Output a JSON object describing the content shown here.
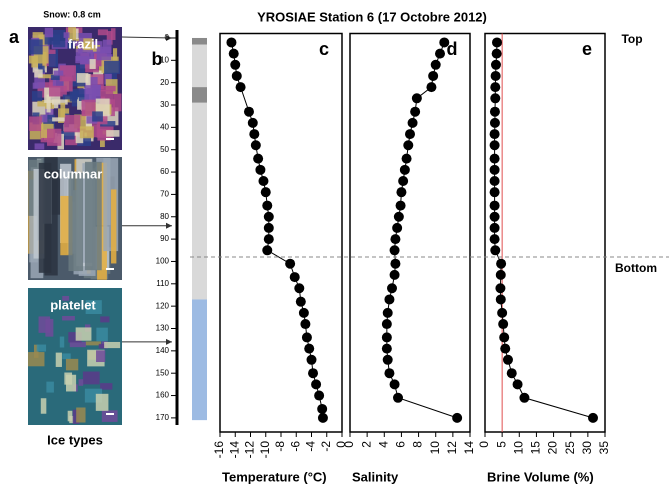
{
  "title": "YROSIAE Station 6 (17 Octobre 2012)",
  "snow": "Snow: 0.8 cm",
  "ice_types": "Ice types",
  "top": "Top",
  "bottom": "Bottom",
  "bottom_depth": 98,
  "panel_a": "a",
  "panel_b": "b",
  "photos": [
    {
      "label": "frazil",
      "depth": 0
    },
    {
      "label": "columnar",
      "depth": 84
    },
    {
      "label": "platelet",
      "depth": 136
    }
  ],
  "ice_column": [
    {
      "from": 0,
      "to": 3,
      "color": "#8a8a8a"
    },
    {
      "from": 3,
      "to": 22,
      "color": "#d9d9d9"
    },
    {
      "from": 22,
      "to": 29,
      "color": "#8a8a8a"
    },
    {
      "from": 29,
      "to": 117,
      "color": "#d9d9d9"
    },
    {
      "from": 117,
      "to": 171,
      "color": "#9dbbe3"
    }
  ],
  "depth_axis": {
    "ylim": [
      -2,
      176
    ],
    "yticks": [
      0,
      10,
      20,
      30,
      40,
      50,
      60,
      70,
      80,
      90,
      100,
      110,
      120,
      130,
      140,
      150,
      160,
      170
    ]
  },
  "chart_data": [
    {
      "type": "line",
      "label": "c",
      "xlabel": "Temperature (°C)",
      "xlim": [
        -16,
        0
      ],
      "xticks": [
        -16,
        -14,
        -12,
        -10,
        -8,
        -6,
        -4,
        -2,
        0
      ],
      "depth": [
        2,
        7,
        12,
        17,
        22,
        33,
        38,
        43,
        48,
        54,
        59,
        64,
        69,
        75,
        80,
        85,
        90,
        95,
        101,
        107,
        112,
        118,
        123,
        128,
        134,
        139,
        144,
        150,
        155,
        160,
        166,
        170
      ],
      "values": [
        -14.5,
        -14.2,
        -14,
        -13.8,
        -13.3,
        -12.2,
        -11.7,
        -11.5,
        -11.3,
        -11,
        -10.7,
        -10.3,
        -10,
        -9.8,
        -9.6,
        -9.6,
        -9.6,
        -9.8,
        -6.8,
        -6.2,
        -5.6,
        -5.4,
        -5,
        -4.8,
        -4.6,
        -4.3,
        -4,
        -3.8,
        -3.4,
        -3,
        -2.6,
        -2.5
      ]
    },
    {
      "type": "line",
      "label": "d",
      "xlabel": "Salinity",
      "xlim": [
        0,
        14
      ],
      "xticks": [
        0,
        2,
        4,
        6,
        8,
        10,
        12,
        14
      ],
      "depth": [
        2,
        7,
        12,
        17,
        22,
        27,
        33,
        38,
        43,
        48,
        54,
        59,
        64,
        69,
        75,
        80,
        85,
        90,
        95,
        101,
        106,
        112,
        117,
        123,
        128,
        134,
        139,
        144,
        150,
        155,
        161,
        170
      ],
      "values": [
        11,
        10.5,
        10,
        9.7,
        9.5,
        7.8,
        7.6,
        7.3,
        7,
        6.8,
        6.6,
        6.4,
        6.2,
        6,
        5.9,
        5.7,
        5.5,
        5.3,
        5.2,
        5.3,
        5.2,
        4.9,
        4.6,
        4.4,
        4.3,
        4.3,
        4.3,
        4.4,
        4.6,
        5.2,
        5.6,
        12.5
      ]
    },
    {
      "type": "line",
      "label": "e",
      "xlabel": "Brine Volume (%)",
      "xlim": [
        0,
        35
      ],
      "xticks": [
        0,
        5,
        10,
        15,
        20,
        25,
        30,
        35
      ],
      "reference_line": 5,
      "depth": [
        2,
        7,
        12,
        17,
        22,
        27,
        33,
        38,
        43,
        48,
        54,
        59,
        64,
        69,
        75,
        80,
        85,
        90,
        95,
        101,
        106,
        112,
        117,
        123,
        128,
        134,
        139,
        144,
        150,
        155,
        161,
        170
      ],
      "values": [
        3.5,
        3.4,
        3.2,
        3.1,
        3,
        3,
        2.9,
        2.9,
        2.8,
        2.8,
        2.8,
        2.8,
        2.8,
        2.8,
        2.8,
        2.8,
        2.8,
        2.8,
        3,
        4.7,
        4.6,
        4.5,
        4.6,
        5,
        5.3,
        5.6,
        5.9,
        6.7,
        7.8,
        9.5,
        11.5,
        31.5
      ]
    }
  ]
}
